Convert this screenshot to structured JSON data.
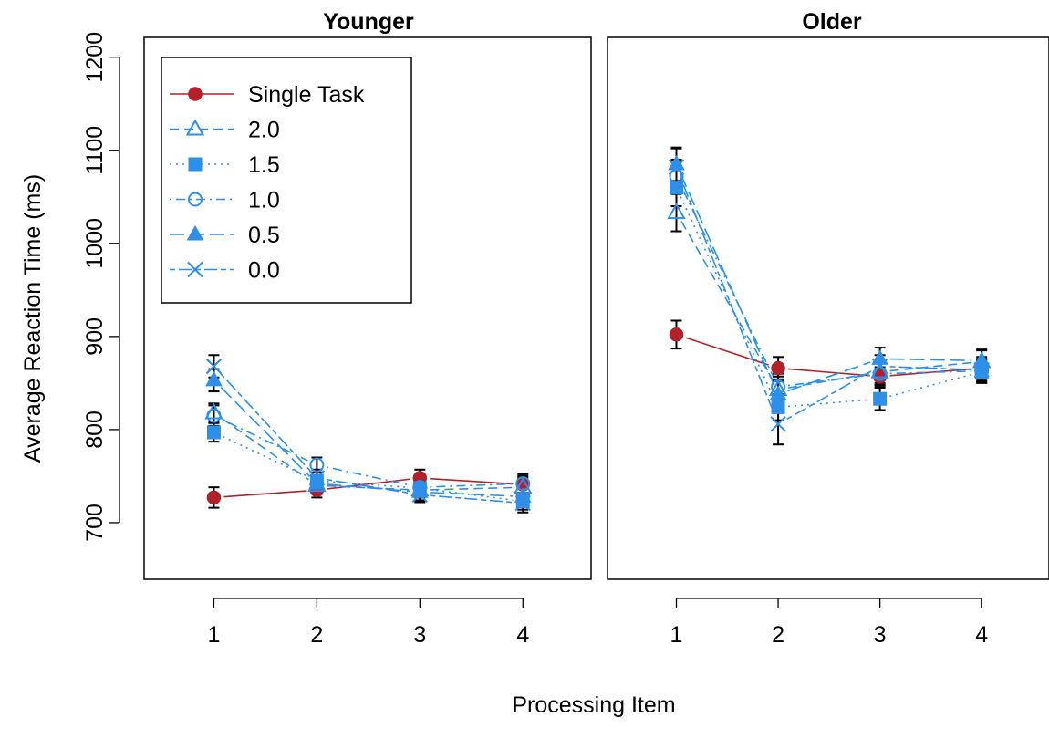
{
  "chart_data": {
    "type": "line",
    "ylabel": "Average Reaction Time (ms)",
    "xlabel": "Processing Item",
    "ylim": [
      640,
      1220
    ],
    "yticks": [
      700,
      800,
      900,
      1000,
      1100,
      1200
    ],
    "xticks": [
      "1",
      "2",
      "3",
      "4"
    ],
    "grid": false,
    "legend": {
      "placement": "top-left of left panel",
      "entries": [
        "Single Task",
        "2.0",
        "1.5",
        "1.0",
        "0.5",
        "0.0"
      ]
    },
    "colors": {
      "single_task": "#B2202A",
      "dual_task": "#2E8FE8",
      "error_bar": "#000000"
    },
    "series_styles": [
      {
        "name": "Single Task",
        "marker": "filled-circle",
        "dash": "solid",
        "color": "#B2202A"
      },
      {
        "name": "2.0",
        "marker": "open-triangle",
        "dash": "dashed",
        "color": "#2E8FE8"
      },
      {
        "name": "1.5",
        "marker": "filled-square",
        "dash": "dotted",
        "color": "#2E8FE8"
      },
      {
        "name": "1.0",
        "marker": "open-circle",
        "dash": "dotdash",
        "color": "#2E8FE8"
      },
      {
        "name": "0.5",
        "marker": "filled-triangle",
        "dash": "longdash",
        "color": "#2E8FE8"
      },
      {
        "name": "0.0",
        "marker": "cross",
        "dash": "twodash",
        "color": "#2E8FE8"
      }
    ],
    "panels": [
      {
        "title": "Younger",
        "x": [
          1,
          2,
          3,
          4
        ],
        "series": [
          {
            "name": "Single Task",
            "values": [
              727,
              735,
              748,
              741
            ],
            "err": [
              11,
              8,
              9,
              9
            ]
          },
          {
            "name": "2.0",
            "values": [
              818,
              740,
              735,
              738
            ],
            "err": [
              10,
              9,
              8,
              10
            ]
          },
          {
            "name": "1.5",
            "values": [
              797,
              745,
              737,
              723
            ],
            "err": [
              10,
              9,
              8,
              9
            ]
          },
          {
            "name": "1.0",
            "values": [
              815,
              762,
              738,
              742
            ],
            "err": [
              11,
              8,
              9,
              10
            ]
          },
          {
            "name": "0.5",
            "values": [
              853,
              742,
              733,
              728
            ],
            "err": [
              12,
              9,
              9,
              10
            ]
          },
          {
            "name": "0.0",
            "values": [
              868,
              748,
              730,
              721
            ],
            "err": [
              12,
              9,
              8,
              10
            ]
          }
        ]
      },
      {
        "title": "Older",
        "x": [
          1,
          2,
          3,
          4
        ],
        "series": [
          {
            "name": "Single Task",
            "values": [
              902,
              866,
              857,
              866
            ],
            "err": [
              15,
              12,
              10,
              12
            ]
          },
          {
            "name": "2.0",
            "values": [
              1033,
              843,
              862,
              873
            ],
            "err": [
              20,
              14,
              12,
              12
            ]
          },
          {
            "name": "1.5",
            "values": [
              1060,
              824,
              833,
              862
            ],
            "err": [
              20,
              14,
              12,
              12
            ]
          },
          {
            "name": "1.0",
            "values": [
              1072,
              846,
              860,
              863
            ],
            "err": [
              18,
              14,
              12,
              12
            ]
          },
          {
            "name": "0.5",
            "values": [
              1085,
              838,
              876,
              874
            ],
            "err": [
              18,
              14,
              12,
              12
            ]
          },
          {
            "name": "0.0",
            "values": [
              1082,
              806,
              868,
              864
            ],
            "err": [
              20,
              22,
              12,
              12
            ]
          }
        ]
      }
    ]
  }
}
